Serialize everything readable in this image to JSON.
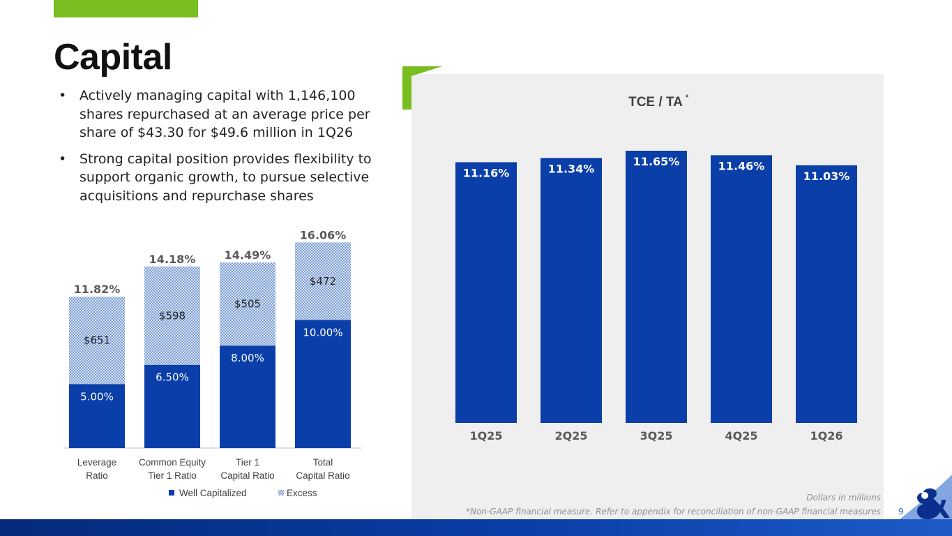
{
  "page": {
    "title": "Capital",
    "bullets": [
      "Actively managing capital with 1,146,100 shares repurchased at an average price per share of $43.30 for $49.6 million in 1Q26",
      "Strong capital position provides flexibility to support organic growth, to pursue selective acquisitions and repurchase shares"
    ],
    "bullet_symbol": "•",
    "notes": {
      "units": "Dollars in millions",
      "footnote": "*Non-GAAP financial measure. Refer to appendix for reconciliation of non-GAAP financial measures"
    },
    "page_number": "9",
    "colors": {
      "brand_green": "#78be20",
      "brand_blue": "#0a3ea8",
      "dark_blue": "#052a7a",
      "panel_gray": "#efefef",
      "page_number_blue": "#1e5bc6"
    }
  },
  "chart_data": [
    {
      "type": "bar",
      "stacked": true,
      "categories": [
        "Leverage Ratio",
        "Common Equity Tier 1 Ratio",
        "Tier 1 Capital Ratio",
        "Total Capital Ratio"
      ],
      "category_lines": [
        [
          "Leverage",
          "Ratio"
        ],
        [
          "Common Equity",
          "Tier 1 Ratio"
        ],
        [
          "Tier 1",
          "Capital Ratio"
        ],
        [
          "Total",
          "Capital Ratio"
        ]
      ],
      "series": [
        {
          "name": "Well Capitalized",
          "values": [
            5.0,
            6.5,
            8.0,
            10.0
          ],
          "labels": [
            "5.00%",
            "6.50%",
            "8.00%",
            "10.00%"
          ],
          "color": "#0a3ea8"
        },
        {
          "name": "Excess",
          "values": [
            6.82,
            7.68,
            6.49,
            6.06
          ],
          "labels": [
            "$651",
            "$598",
            "$505",
            "$472"
          ],
          "color": "#c9d7ee"
        }
      ],
      "totals": [
        11.82,
        14.18,
        14.49,
        16.06
      ],
      "total_labels": [
        "11.82%",
        "14.18%",
        "14.49%",
        "16.06%"
      ],
      "ylim": [
        0,
        16.5
      ],
      "legend": "bottom",
      "grid": false
    },
    {
      "type": "bar",
      "title": "TCE / TA",
      "title_marker": "*",
      "categories": [
        "1Q25",
        "2Q25",
        "3Q25",
        "4Q25",
        "1Q26"
      ],
      "values": [
        11.16,
        11.34,
        11.65,
        11.46,
        11.03
      ],
      "labels": [
        "11.16%",
        "11.34%",
        "11.65%",
        "11.46%",
        "11.03%"
      ],
      "ylim": [
        0,
        11.65
      ],
      "color": "#0a3ea8",
      "grid": false
    }
  ]
}
